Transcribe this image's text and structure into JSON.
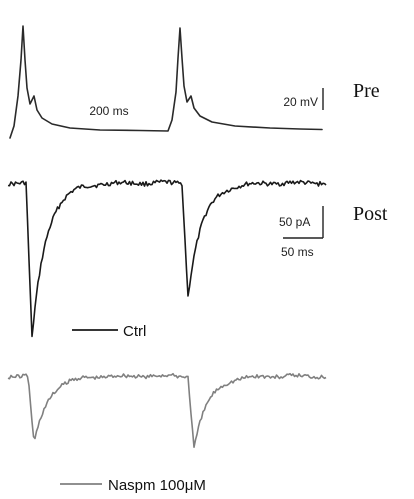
{
  "labels": {
    "pre": "Pre",
    "post": "Post",
    "pre_interval": "200 ms",
    "voltage_scale": "20 mV",
    "current_scale": "50 pA",
    "time_scale": "50 ms",
    "legend_ctrl": "Ctrl",
    "legend_naspm": "Naspm 100μM"
  },
  "colors": {
    "pre_trace": "#2a2a2a",
    "ctrl_trace": "#1a1a1a",
    "naspm_trace": "#808080",
    "scale_bar": "#222222"
  }
}
